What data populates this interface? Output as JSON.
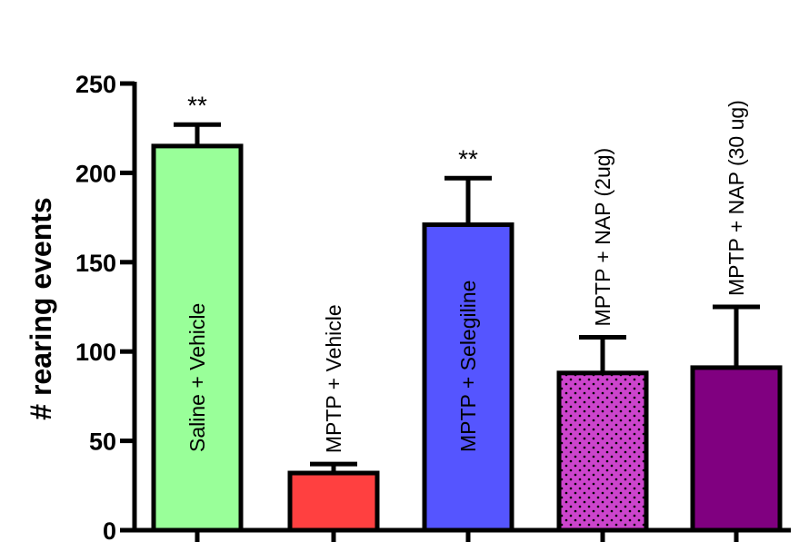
{
  "chart_data": {
    "type": "bar",
    "title": "",
    "xlabel": "",
    "ylabel": "# rearing events",
    "ylim": [
      0,
      250
    ],
    "yticks": [
      "0",
      "50",
      "100",
      "150",
      "200",
      "250"
    ],
    "grid": false,
    "legend": "none",
    "categories": [
      "Saline + Vehicle",
      "MPTP + Vehicle",
      "MPTP + Selegiline",
      "MPTP + NAP (2ug)",
      "MPTP + NAP (30 ug)"
    ],
    "values": [
      215,
      32,
      171,
      88,
      91
    ],
    "errors": [
      12,
      5,
      26,
      20,
      34
    ],
    "significance": [
      "**",
      "",
      "**",
      "",
      ""
    ],
    "colors": [
      "#99ff99",
      "#ff4040",
      "#5555ff",
      "#cc44cc",
      "#800080"
    ],
    "patterns": [
      "solid",
      "solid",
      "solid",
      "dots",
      "solid"
    ]
  }
}
